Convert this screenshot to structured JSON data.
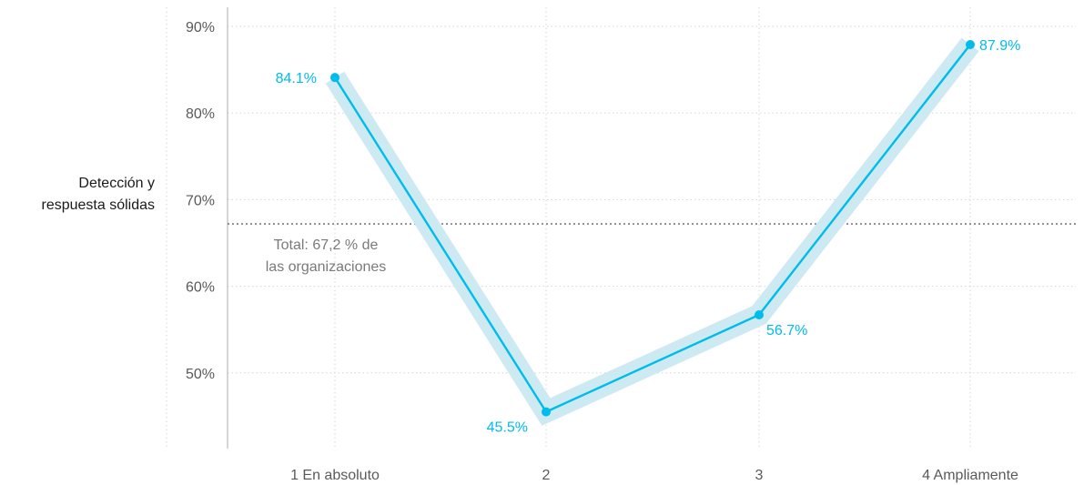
{
  "chart_data": {
    "type": "line",
    "title": "",
    "ylabel_lines": [
      "Detección y",
      "respuesta sólidas"
    ],
    "xlabel": "",
    "categories": [
      "1 En absoluto",
      "2",
      "3",
      "4 Ampliamente"
    ],
    "series": [
      {
        "values": [
          84.1,
          45.5,
          56.7,
          87.9
        ],
        "data_labels": [
          "84.1%",
          "45.5%",
          "56.7%",
          "87.9%"
        ],
        "color": "#00bceb",
        "band_color": "#cdeaf3"
      }
    ],
    "ylim": [
      40,
      92
    ],
    "yticks": [
      50,
      60,
      70,
      80,
      90
    ],
    "ytick_labels": [
      "50%",
      "60%",
      "70%",
      "80%",
      "90%"
    ],
    "reference_line": {
      "value": 67.2,
      "label_lines": [
        "Total: 67,2 % de",
        "las organizaciones"
      ],
      "color": "#7a7a7a"
    },
    "grid": true,
    "legend": "none"
  }
}
